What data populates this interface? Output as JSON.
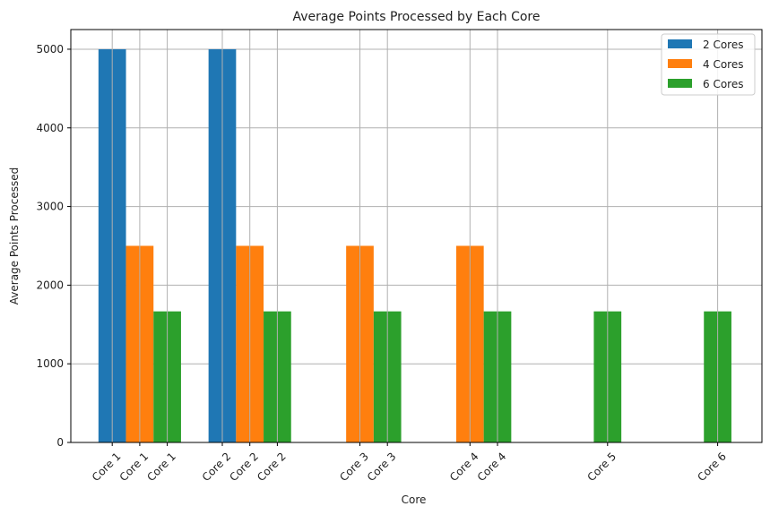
{
  "chart_data": {
    "type": "bar",
    "title": "Average Points Processed by Each Core",
    "xlabel": "Core",
    "ylabel": "Average Points Processed",
    "ylim": [
      0,
      5250
    ],
    "yticks": [
      0,
      1000,
      2000,
      3000,
      4000,
      5000
    ],
    "grid": true,
    "legend_position": "top-right",
    "series": [
      {
        "name": "2 Cores",
        "color": "#1f77b4",
        "x": [
          1,
          2
        ],
        "labels": [
          "Core 1",
          "Core 2"
        ],
        "values": [
          5000,
          5000
        ]
      },
      {
        "name": "4 Cores",
        "color": "#ff7f0e",
        "x": [
          1,
          2,
          3,
          4
        ],
        "labels": [
          "Core 1",
          "Core 2",
          "Core 3",
          "Core 4"
        ],
        "values": [
          2500,
          2500,
          2500,
          2500
        ]
      },
      {
        "name": "6 Cores",
        "color": "#2ca02c",
        "x": [
          1,
          2,
          3,
          4,
          5,
          6
        ],
        "labels": [
          "Core 1",
          "Core 2",
          "Core 3",
          "Core 4",
          "Core 5",
          "Core 6"
        ],
        "values": [
          1666.67,
          1666.67,
          1666.67,
          1666.67,
          1666.67,
          1666.67
        ]
      }
    ]
  }
}
